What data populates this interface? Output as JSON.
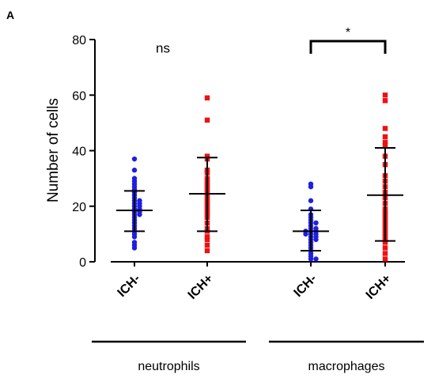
{
  "panel_label": "A",
  "chart_data": {
    "type": "scatter",
    "ylabel": "Number of cells",
    "ylim": [
      0,
      80
    ],
    "yticks": [
      "0",
      "20",
      "40",
      "60",
      "80"
    ],
    "categories": [
      "ICH-",
      "ICH+",
      "ICH-",
      "ICH+"
    ],
    "groups": [
      {
        "label": "neutrophils",
        "categories": [
          0,
          1
        ]
      },
      {
        "label": "macrophages",
        "categories": [
          2,
          3
        ]
      }
    ],
    "series": [
      {
        "category": "ICH-",
        "group": "neutrophils",
        "color": "#1f1fe0",
        "marker": "circle",
        "mean": 18.5,
        "sd_low": 11,
        "sd_high": 25.5,
        "values": [
          37,
          33,
          30,
          29,
          28,
          27,
          26,
          25,
          24,
          23,
          22,
          22,
          21,
          21,
          20,
          20,
          19,
          19,
          18,
          18,
          17,
          17,
          16,
          15,
          14,
          13,
          12,
          11,
          10,
          9,
          7,
          6,
          5
        ]
      },
      {
        "category": "ICH+",
        "group": "neutrophils",
        "color": "#ee1111",
        "marker": "square",
        "mean": 24.5,
        "sd_low": 11,
        "sd_high": 37.5,
        "values": [
          59,
          51,
          38,
          37,
          33,
          32,
          30,
          29,
          28,
          27,
          26,
          25,
          24,
          23,
          22,
          21,
          20,
          19,
          18,
          17,
          16,
          14,
          12,
          11,
          9,
          8,
          6,
          4
        ]
      },
      {
        "category": "ICH-",
        "group": "macrophages",
        "color": "#1f1fe0",
        "marker": "circle",
        "mean": 11,
        "sd_low": 4,
        "sd_high": 18.5,
        "values": [
          28,
          27,
          22,
          19,
          17,
          16,
          15,
          14,
          14,
          13,
          12,
          12,
          11,
          11,
          11,
          10,
          10,
          10,
          9,
          9,
          8,
          8,
          7,
          6,
          5,
          4,
          3,
          2,
          1,
          1
        ]
      },
      {
        "category": "ICH+",
        "group": "macrophages",
        "color": "#ee1111",
        "marker": "square",
        "mean": 24,
        "sd_low": 7.5,
        "sd_high": 41,
        "values": [
          60,
          58,
          48,
          45,
          43,
          42,
          38,
          35,
          31,
          29,
          27,
          25,
          23,
          21,
          19,
          18,
          17,
          16,
          15,
          14,
          13,
          12,
          11,
          10,
          9,
          8,
          7,
          5,
          3,
          1
        ]
      }
    ],
    "annotations": [
      {
        "text": "ns",
        "group": "neutrophils",
        "y": 77
      },
      {
        "text": "*",
        "group": "macrophages",
        "bracket": true,
        "y": 80
      }
    ]
  }
}
